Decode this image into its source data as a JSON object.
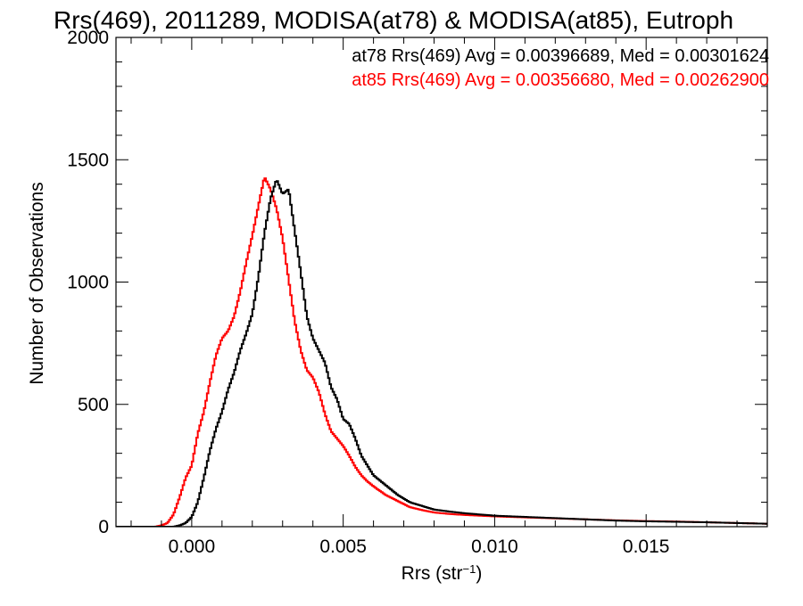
{
  "chart_data": {
    "type": "line",
    "title": "Rrs(469), 2011289, MODISA(at78) & MODISA(at85), Eutroph",
    "xlabel": {
      "base": "Rrs (str",
      "sup": "−1",
      "close": ")"
    },
    "ylabel": "Number of Observations",
    "xlim": [
      -0.0025,
      0.019
    ],
    "ylim": [
      0,
      2000
    ],
    "x_ticks": [
      {
        "value": 0.0,
        "label": "0.000"
      },
      {
        "value": 0.005,
        "label": "0.005"
      },
      {
        "value": 0.01,
        "label": "0.010"
      },
      {
        "value": 0.015,
        "label": "0.015"
      }
    ],
    "y_ticks": [
      {
        "value": 0,
        "label": "0"
      },
      {
        "value": 500,
        "label": "500"
      },
      {
        "value": 1000,
        "label": "1000"
      },
      {
        "value": 1500,
        "label": "1500"
      },
      {
        "value": 2000,
        "label": "2000"
      }
    ],
    "x_minor_step": 0.001,
    "y_minor_step": 100,
    "grid": false,
    "legend_position": "top-right",
    "series": [
      {
        "name": "at78",
        "legend_text": "at78 Rrs(469) Avg = 0.00396689, Med = 0.00301624",
        "color": "#000000",
        "points": [
          [
            -0.0025,
            0
          ],
          [
            -0.0006,
            0
          ],
          [
            -0.0004,
            5
          ],
          [
            -0.0002,
            15
          ],
          [
            0.0,
            40
          ],
          [
            0.0002,
            100
          ],
          [
            0.0004,
            200
          ],
          [
            0.0006,
            310
          ],
          [
            0.0008,
            400
          ],
          [
            0.001,
            470
          ],
          [
            0.0012,
            560
          ],
          [
            0.0014,
            630
          ],
          [
            0.0016,
            720
          ],
          [
            0.0018,
            790
          ],
          [
            0.002,
            870
          ],
          [
            0.0022,
            1020
          ],
          [
            0.0024,
            1200
          ],
          [
            0.0026,
            1340
          ],
          [
            0.0028,
            1420
          ],
          [
            0.003,
            1360
          ],
          [
            0.0032,
            1380
          ],
          [
            0.0034,
            1210
          ],
          [
            0.0036,
            1040
          ],
          [
            0.0038,
            860
          ],
          [
            0.004,
            770
          ],
          [
            0.0042,
            720
          ],
          [
            0.0044,
            670
          ],
          [
            0.0046,
            570
          ],
          [
            0.0048,
            520
          ],
          [
            0.005,
            440
          ],
          [
            0.0052,
            420
          ],
          [
            0.0054,
            360
          ],
          [
            0.0056,
            290
          ],
          [
            0.0058,
            250
          ],
          [
            0.006,
            210
          ],
          [
            0.0064,
            170
          ],
          [
            0.0068,
            130
          ],
          [
            0.0072,
            100
          ],
          [
            0.0076,
            85
          ],
          [
            0.008,
            70
          ],
          [
            0.0085,
            62
          ],
          [
            0.009,
            55
          ],
          [
            0.0095,
            50
          ],
          [
            0.01,
            45
          ],
          [
            0.011,
            40
          ],
          [
            0.012,
            35
          ],
          [
            0.013,
            30
          ],
          [
            0.014,
            25
          ],
          [
            0.015,
            22
          ],
          [
            0.016,
            20
          ],
          [
            0.017,
            18
          ],
          [
            0.018,
            15
          ],
          [
            0.019,
            12
          ]
        ]
      },
      {
        "name": "at85",
        "legend_text": "at85 Rrs(469) Avg = 0.00356680, Med = 0.00262900",
        "color": "#ff0000",
        "points": [
          [
            -0.0025,
            0
          ],
          [
            -0.0012,
            0
          ],
          [
            -0.001,
            5
          ],
          [
            -0.0008,
            15
          ],
          [
            -0.0006,
            50
          ],
          [
            -0.0004,
            120
          ],
          [
            -0.0002,
            200
          ],
          [
            0.0,
            250
          ],
          [
            0.0002,
            380
          ],
          [
            0.0004,
            470
          ],
          [
            0.0006,
            590
          ],
          [
            0.0008,
            700
          ],
          [
            0.001,
            770
          ],
          [
            0.0012,
            800
          ],
          [
            0.0014,
            860
          ],
          [
            0.0016,
            960
          ],
          [
            0.0018,
            1080
          ],
          [
            0.002,
            1190
          ],
          [
            0.0022,
            1310
          ],
          [
            0.0024,
            1430
          ],
          [
            0.0026,
            1380
          ],
          [
            0.0028,
            1300
          ],
          [
            0.003,
            1180
          ],
          [
            0.0032,
            1010
          ],
          [
            0.0034,
            840
          ],
          [
            0.0036,
            720
          ],
          [
            0.0038,
            640
          ],
          [
            0.004,
            610
          ],
          [
            0.0042,
            550
          ],
          [
            0.0044,
            460
          ],
          [
            0.0046,
            390
          ],
          [
            0.0048,
            360
          ],
          [
            0.005,
            330
          ],
          [
            0.0052,
            290
          ],
          [
            0.0054,
            245
          ],
          [
            0.0056,
            210
          ],
          [
            0.0058,
            185
          ],
          [
            0.006,
            165
          ],
          [
            0.0064,
            130
          ],
          [
            0.0068,
            105
          ],
          [
            0.0072,
            80
          ],
          [
            0.0076,
            68
          ],
          [
            0.008,
            58
          ],
          [
            0.0085,
            52
          ],
          [
            0.009,
            48
          ],
          [
            0.0095,
            45
          ],
          [
            0.01,
            42
          ],
          [
            0.011,
            38
          ],
          [
            0.012,
            34
          ],
          [
            0.013,
            30
          ],
          [
            0.014,
            26
          ],
          [
            0.015,
            23
          ],
          [
            0.016,
            21
          ],
          [
            0.017,
            18
          ],
          [
            0.018,
            15
          ],
          [
            0.019,
            12
          ]
        ]
      }
    ]
  }
}
